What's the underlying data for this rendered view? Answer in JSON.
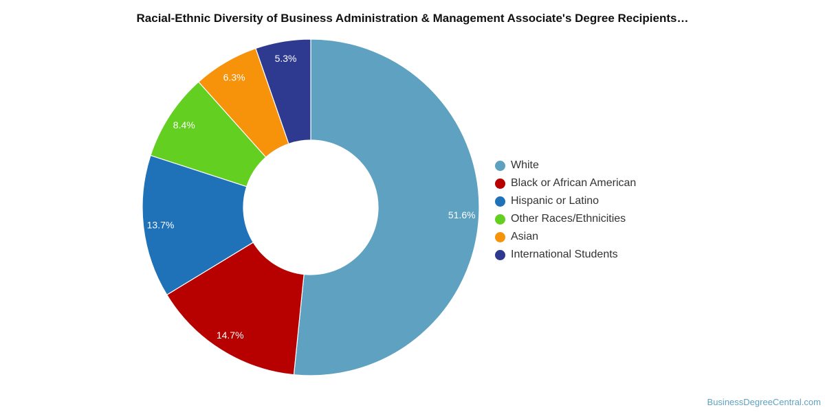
{
  "chart_data": {
    "type": "pie",
    "variant": "donut",
    "title": "Racial-Ethnic Diversity of Business Administration & Management Associate's Degree Recipients…",
    "legend_position": "right",
    "unit": "%",
    "categories": [
      "White",
      "Black or African American",
      "Hispanic or Latino",
      "Other Races/Ethnicities",
      "Asian",
      "International Students"
    ],
    "values": [
      51.6,
      14.7,
      13.7,
      8.4,
      6.3,
      5.3
    ],
    "value_labels": [
      "51.6%",
      "14.7%",
      "13.7%",
      "8.4%",
      "6.3%",
      "5.3%"
    ],
    "colors": [
      "#5ea1c0",
      "#b70000",
      "#1f72b8",
      "#63cf20",
      "#f7920b",
      "#2d3a90"
    ]
  },
  "footer": {
    "source": "BusinessDegreeCentral.com"
  }
}
